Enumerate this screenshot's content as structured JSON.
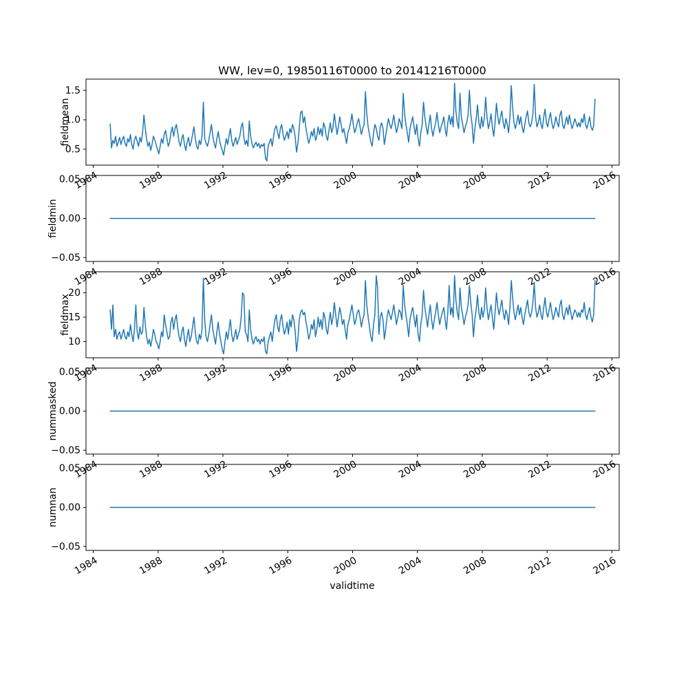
{
  "figure": {
    "title": "WW, lev=0, 19850116T0000 to 20141216T0000",
    "xlabel": "validtime",
    "line_color": "#1f77b4",
    "background": "#ffffff",
    "xlim": [
      1983.55,
      2016.45
    ],
    "xticks": [
      1984,
      1988,
      1992,
      1996,
      2000,
      2004,
      2008,
      2012,
      2016
    ],
    "xtick_labels": [
      "1984",
      "1988",
      "1992",
      "1996",
      "2000",
      "2004",
      "2008",
      "2012",
      "2016"
    ]
  },
  "chart_data": [
    {
      "type": "line",
      "name": "fieldmean",
      "ylabel": "fieldmean",
      "x_start": 1985.0417,
      "x_step": 0.0833333,
      "ylim": [
        0.23,
        1.69
      ],
      "yticks": [
        0.5,
        1.0,
        1.5
      ],
      "ytick_labels": [
        "0.5",
        "1.0",
        "1.5"
      ],
      "values": [
        0.93,
        0.52,
        0.65,
        0.6,
        0.72,
        0.55,
        0.62,
        0.7,
        0.58,
        0.66,
        0.72,
        0.6,
        0.55,
        0.68,
        0.62,
        0.75,
        0.58,
        0.5,
        0.66,
        0.72,
        0.63,
        0.55,
        0.7,
        0.62,
        0.78,
        1.08,
        0.85,
        0.67,
        0.55,
        0.62,
        0.48,
        0.58,
        0.72,
        0.66,
        0.58,
        0.5,
        0.42,
        0.55,
        0.68,
        0.6,
        0.75,
        0.82,
        0.68,
        0.55,
        0.62,
        0.78,
        0.88,
        0.72,
        0.85,
        0.92,
        0.78,
        0.62,
        0.55,
        0.68,
        0.75,
        0.58,
        0.48,
        0.62,
        0.7,
        0.55,
        0.62,
        0.75,
        0.88,
        0.68,
        0.55,
        0.5,
        0.65,
        0.58,
        0.72,
        1.3,
        0.68,
        0.6,
        0.55,
        0.65,
        0.78,
        0.92,
        0.72,
        0.6,
        0.52,
        0.68,
        0.8,
        0.65,
        0.55,
        0.48,
        0.4,
        0.55,
        0.68,
        0.58,
        0.72,
        0.85,
        0.65,
        0.55,
        0.62,
        0.7,
        0.58,
        0.65,
        0.72,
        0.88,
        0.95,
        0.7,
        0.58,
        0.65,
        0.55,
        0.98,
        0.72,
        0.6,
        0.52,
        0.58,
        0.62,
        0.55,
        0.6,
        0.52,
        0.58,
        0.55,
        0.6,
        0.35,
        0.3,
        0.55,
        0.62,
        0.68,
        0.55,
        0.72,
        0.85,
        0.9,
        0.78,
        0.68,
        0.85,
        0.92,
        0.75,
        0.65,
        0.72,
        0.8,
        0.68,
        0.85,
        0.78,
        0.92,
        0.85,
        0.7,
        0.45,
        0.6,
        0.85,
        1.12,
        1.15,
        0.95,
        1.05,
        0.85,
        0.72,
        0.6,
        0.68,
        0.8,
        0.72,
        0.85,
        0.65,
        0.72,
        0.88,
        0.75,
        0.85,
        0.72,
        0.95,
        0.88,
        0.72,
        0.65,
        0.82,
        0.95,
        0.78,
        0.88,
        1.1,
        0.92,
        0.75,
        0.88,
        1.05,
        0.92,
        0.78,
        0.85,
        0.72,
        0.6,
        0.78,
        0.85,
        0.95,
        1.1,
        0.92,
        0.78,
        0.85,
        0.95,
        1.02,
        0.88,
        0.75,
        0.85,
        0.92,
        1.48,
        1.1,
        0.88,
        0.75,
        0.62,
        0.55,
        0.78,
        0.92,
        0.85,
        0.72,
        0.65,
        0.88,
        0.95,
        0.85,
        0.58,
        0.72,
        0.88,
        1.02,
        0.92,
        0.85,
        0.95,
        1.08,
        0.92,
        0.78,
        0.88,
        1.02,
        0.95,
        0.85,
        1.45,
        1.1,
        0.92,
        0.78,
        0.62,
        0.85,
        0.95,
        1.05,
        0.88,
        0.75,
        0.92,
        0.68,
        0.55,
        0.78,
        0.92,
        1.3,
        1.05,
        0.88,
        0.75,
        0.92,
        1.08,
        0.85,
        0.72,
        0.85,
        0.95,
        1.12,
        0.92,
        0.78,
        0.88,
        0.95,
        1.05,
        0.85,
        0.72,
        0.95,
        1.08,
        0.92,
        1.05,
        0.88,
        1.62,
        1.15,
        0.95,
        0.85,
        1.45,
        1.05,
        0.92,
        0.78,
        0.88,
        0.95,
        1.08,
        1.5,
        1.1,
        0.92,
        0.6,
        0.85,
        1.02,
        1.25,
        0.95,
        0.85,
        1.05,
        0.88,
        1.02,
        1.38,
        1.05,
        0.85,
        0.95,
        1.1,
        0.88,
        0.72,
        0.95,
        1.28,
        1.05,
        0.92,
        1.05,
        1.15,
        0.95,
        0.85,
        1.02,
        0.92,
        0.78,
        1.05,
        1.58,
        1.2,
        0.95,
        0.85,
        0.95,
        1.08,
        0.92,
        1.05,
        0.88,
        0.78,
        0.92,
        1.05,
        1.15,
        0.95,
        0.88,
        0.95,
        1.1,
        1.6,
        1.05,
        0.88,
        0.95,
        1.08,
        0.92,
        0.85,
        1.05,
        1.18,
        0.95,
        0.88,
        1.02,
        1.12,
        0.95,
        0.85,
        0.92,
        1.05,
        0.95,
        0.88,
        1.08,
        1.15,
        0.92,
        0.85,
        0.95,
        1.05,
        0.92,
        1.08,
        0.95,
        0.85,
        0.92,
        1.02,
        0.95,
        0.88,
        0.95,
        0.88,
        1.02,
        0.95,
        1.1,
        0.92,
        0.85,
        0.95,
        1.05,
        0.88,
        0.82,
        0.9,
        1.35
      ]
    },
    {
      "type": "line",
      "name": "fieldmin",
      "ylabel": "fieldmin",
      "x": [
        1985.0417,
        2014.9583
      ],
      "values": [
        0.0,
        0.0
      ],
      "ylim": [
        -0.055,
        0.055
      ],
      "yticks": [
        -0.05,
        0.0,
        0.05
      ],
      "ytick_labels": [
        "−0.05",
        "0.00",
        "0.05"
      ]
    },
    {
      "type": "line",
      "name": "fieldmax",
      "ylabel": "fieldmax",
      "x_start": 1985.0417,
      "x_step": 0.0833333,
      "ylim": [
        6.7,
        24.3
      ],
      "yticks": [
        10,
        15,
        20
      ],
      "ytick_labels": [
        "10",
        "15",
        "20"
      ],
      "values": [
        16.5,
        12.5,
        17.5,
        11.0,
        12.5,
        10.5,
        11.5,
        12.0,
        10.5,
        11.5,
        12.5,
        11.0,
        10.5,
        12.0,
        11.0,
        13.5,
        11.5,
        10.0,
        12.5,
        17.5,
        12.0,
        10.5,
        13.0,
        11.5,
        12.0,
        17.0,
        13.5,
        11.0,
        9.5,
        10.5,
        9.0,
        10.5,
        12.5,
        11.5,
        10.0,
        9.5,
        8.5,
        10.0,
        12.0,
        11.0,
        15.5,
        13.5,
        12.0,
        10.5,
        11.0,
        14.0,
        15.0,
        12.5,
        14.5,
        15.5,
        13.0,
        11.0,
        10.0,
        12.0,
        13.0,
        10.5,
        9.0,
        11.0,
        12.5,
        10.0,
        11.0,
        13.0,
        15.0,
        12.0,
        10.0,
        9.5,
        11.5,
        10.5,
        12.5,
        23.0,
        14.5,
        11.0,
        10.0,
        11.5,
        13.5,
        15.5,
        12.5,
        11.0,
        9.5,
        12.0,
        14.0,
        11.5,
        10.0,
        8.5,
        7.5,
        10.0,
        12.0,
        10.5,
        12.5,
        14.5,
        11.5,
        10.0,
        11.0,
        12.5,
        10.5,
        11.5,
        12.5,
        15.0,
        20.0,
        19.5,
        12.0,
        11.5,
        10.0,
        16.5,
        12.5,
        10.5,
        9.5,
        10.5,
        11.0,
        10.0,
        10.5,
        9.5,
        10.5,
        10.0,
        11.0,
        8.0,
        7.5,
        10.0,
        11.0,
        12.0,
        10.0,
        12.5,
        14.5,
        15.5,
        13.0,
        12.0,
        14.5,
        15.5,
        13.0,
        11.5,
        12.5,
        14.0,
        11.5,
        14.5,
        13.0,
        15.5,
        14.5,
        12.0,
        8.0,
        10.5,
        14.5,
        16.0,
        16.5,
        15.5,
        16.0,
        14.0,
        12.5,
        10.5,
        11.5,
        13.5,
        12.5,
        14.5,
        11.0,
        12.5,
        15.0,
        13.0,
        14.5,
        12.5,
        16.0,
        15.0,
        12.5,
        11.5,
        14.0,
        16.0,
        13.5,
        15.0,
        18.0,
        15.5,
        13.0,
        15.0,
        17.0,
        15.5,
        13.5,
        14.5,
        12.5,
        10.5,
        13.5,
        14.5,
        16.0,
        17.5,
        15.5,
        13.5,
        14.5,
        16.0,
        16.5,
        15.0,
        13.0,
        14.5,
        15.5,
        22.5,
        17.5,
        15.0,
        13.0,
        11.0,
        10.0,
        13.5,
        15.5,
        23.5,
        21.0,
        11.5,
        15.0,
        16.0,
        14.5,
        10.5,
        12.5,
        15.0,
        16.5,
        15.5,
        14.5,
        16.0,
        17.5,
        15.5,
        13.5,
        15.0,
        16.5,
        16.0,
        14.5,
        21.5,
        17.5,
        15.5,
        13.5,
        11.0,
        14.5,
        16.0,
        17.0,
        15.0,
        13.0,
        15.5,
        11.5,
        10.0,
        13.5,
        15.5,
        20.5,
        17.0,
        15.0,
        13.0,
        15.5,
        17.5,
        14.5,
        12.5,
        14.5,
        16.0,
        18.0,
        15.5,
        13.5,
        15.0,
        16.0,
        17.0,
        14.5,
        12.5,
        16.0,
        21.5,
        15.5,
        17.0,
        15.0,
        23.5,
        18.5,
        16.0,
        14.5,
        21.0,
        17.0,
        15.5,
        13.5,
        15.0,
        16.0,
        17.5,
        21.5,
        18.0,
        15.5,
        11.0,
        14.5,
        16.5,
        19.5,
        16.0,
        14.5,
        17.0,
        15.0,
        16.5,
        21.0,
        17.0,
        14.5,
        16.0,
        17.5,
        15.0,
        12.5,
        16.0,
        20.0,
        17.0,
        15.5,
        17.0,
        18.5,
        16.0,
        14.5,
        16.5,
        15.5,
        13.5,
        17.0,
        22.5,
        19.0,
        16.0,
        14.5,
        16.0,
        17.5,
        15.5,
        17.0,
        15.0,
        13.5,
        15.5,
        17.0,
        18.5,
        16.0,
        15.0,
        16.0,
        18.0,
        22.0,
        17.0,
        15.0,
        16.0,
        17.5,
        15.5,
        14.5,
        17.0,
        19.0,
        16.0,
        15.0,
        16.5,
        18.0,
        16.0,
        14.5,
        15.5,
        17.0,
        16.0,
        15.0,
        17.5,
        18.5,
        15.5,
        14.5,
        16.0,
        17.0,
        15.5,
        17.5,
        16.0,
        14.5,
        15.5,
        16.5,
        16.0,
        15.0,
        16.0,
        15.0,
        16.5,
        16.0,
        18.0,
        15.5,
        14.5,
        16.0,
        17.0,
        15.0,
        14.0,
        15.5,
        22.5
      ]
    },
    {
      "type": "line",
      "name": "nummasked",
      "ylabel": "nummasked",
      "x": [
        1985.0417,
        2014.9583
      ],
      "values": [
        0.0,
        0.0
      ],
      "ylim": [
        -0.055,
        0.055
      ],
      "yticks": [
        -0.05,
        0.0,
        0.05
      ],
      "ytick_labels": [
        "−0.05",
        "0.00",
        "0.05"
      ]
    },
    {
      "type": "line",
      "name": "numnan",
      "ylabel": "numnan",
      "x": [
        1985.0417,
        2014.9583
      ],
      "values": [
        0.0,
        0.0
      ],
      "ylim": [
        -0.055,
        0.055
      ],
      "yticks": [
        -0.05,
        0.0,
        0.05
      ],
      "ytick_labels": [
        "−0.05",
        "0.00",
        "0.05"
      ]
    }
  ]
}
